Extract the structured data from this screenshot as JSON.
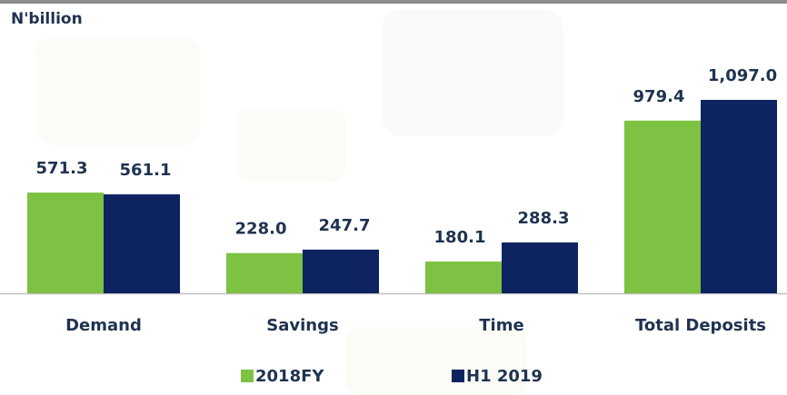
{
  "chart_data": {
    "type": "bar",
    "title": "N'billion",
    "categories": [
      "Demand",
      "Savings",
      "Time",
      "Total Deposits"
    ],
    "series": [
      {
        "name": "2018FY",
        "color": "#7dc242",
        "values": [
          571.3,
          228.0,
          180.1,
          979.4
        ],
        "value_labels": [
          "571.3",
          "228.0",
          "180.1",
          "979.4"
        ]
      },
      {
        "name": "H1 2019",
        "color": "#0d2461",
        "values": [
          561.1,
          247.7,
          288.3,
          1097.0
        ],
        "value_labels": [
          "561.1",
          "247.7",
          "288.3",
          "1,097.0"
        ]
      }
    ]
  }
}
